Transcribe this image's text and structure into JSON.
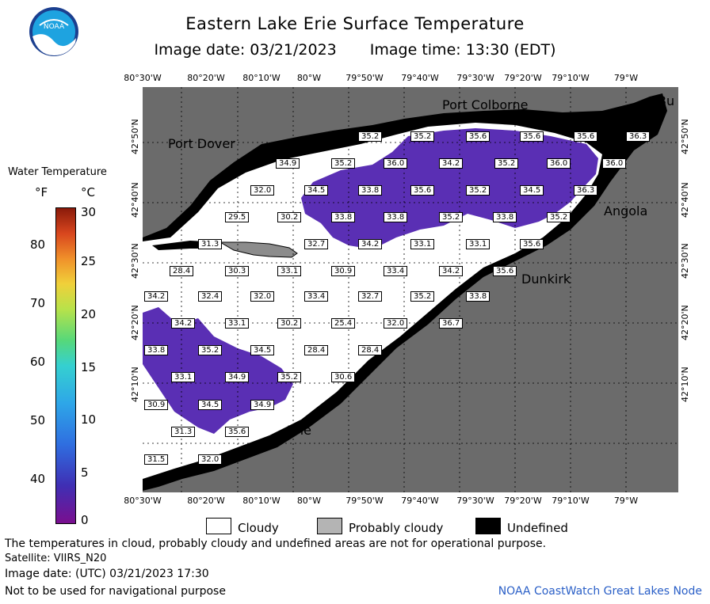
{
  "header": {
    "title": "Eastern Lake Erie Surface Temperature",
    "date_line": "Image date: 03/21/2023",
    "time_line": "Image time: 13:30 (EDT)"
  },
  "logo": {
    "text": "NOAA"
  },
  "axes": {
    "lon_labels": [
      "80°30'W",
      "80°20'W",
      "80°10'W",
      "80°W",
      "79°50'W",
      "79°40'W",
      "79°30'W",
      "79°20'W",
      "79°10'W",
      "79°W"
    ],
    "lat_labels": [
      "42°50'N",
      "42°40'N",
      "42°30'N",
      "42°20'N",
      "42°10'N"
    ]
  },
  "colorbar": {
    "title": "Water Temperature",
    "unit_f": "°F",
    "unit_c": "°C",
    "f_ticks": [
      "80",
      "70",
      "60",
      "50",
      "40"
    ],
    "c_ticks": [
      "30",
      "25",
      "20",
      "15",
      "10",
      "5",
      "0"
    ]
  },
  "places": [
    "Port Colborne",
    "Port Dover",
    "Angola",
    "Dunkirk",
    "Erie",
    "Bu"
  ],
  "temps": [
    "35.2",
    "35.2",
    "35.6",
    "35.6",
    "35.6",
    "36.3",
    "34.9",
    "35.2",
    "36.0",
    "34.2",
    "35.2",
    "36.0",
    "36.0",
    "32.0",
    "34.5",
    "33.8",
    "35.6",
    "35.2",
    "34.5",
    "36.3",
    "29.5",
    "30.2",
    "33.8",
    "33.8",
    "35.2",
    "33.8",
    "35.2",
    "31.3",
    "32.7",
    "34.2",
    "33.1",
    "33.1",
    "35.6",
    "28.4",
    "30.3",
    "33.1",
    "30.9",
    "33.4",
    "34.2",
    "35.6",
    "34.2",
    "32.4",
    "32.0",
    "33.4",
    "32.7",
    "35.2",
    "33.8",
    "34.2",
    "33.1",
    "30.2",
    "25.4",
    "32.0",
    "36.7",
    "33.8",
    "35.2",
    "34.5",
    "28.4",
    "28.4",
    "33.1",
    "34.9",
    "35.2",
    "30.6",
    "30.9",
    "34.5",
    "34.9",
    "31.3",
    "35.6",
    "31.5",
    "32.0"
  ],
  "legend": {
    "cloudy": "Cloudy",
    "probably_cloudy": "Probably cloudy",
    "undefined": "Undefined"
  },
  "footer": {
    "disclaimer": "The temperatures in cloud, probably cloudy and undefined areas are not for operational purpose.",
    "satellite": "Satellite: VIIRS_N20",
    "utc_date": "Image date: (UTC) 03/21/2023  17:30",
    "nav_warning": "Not to be used for navigational purpose",
    "credit": "NOAA CoastWatch Great Lakes Node"
  },
  "colors": {
    "land": "#6b6b6b",
    "undefined": "#000000",
    "cloud": "#ffffff",
    "probably_cloudy": "#b4b4b4",
    "water": "#5a2fb4"
  }
}
